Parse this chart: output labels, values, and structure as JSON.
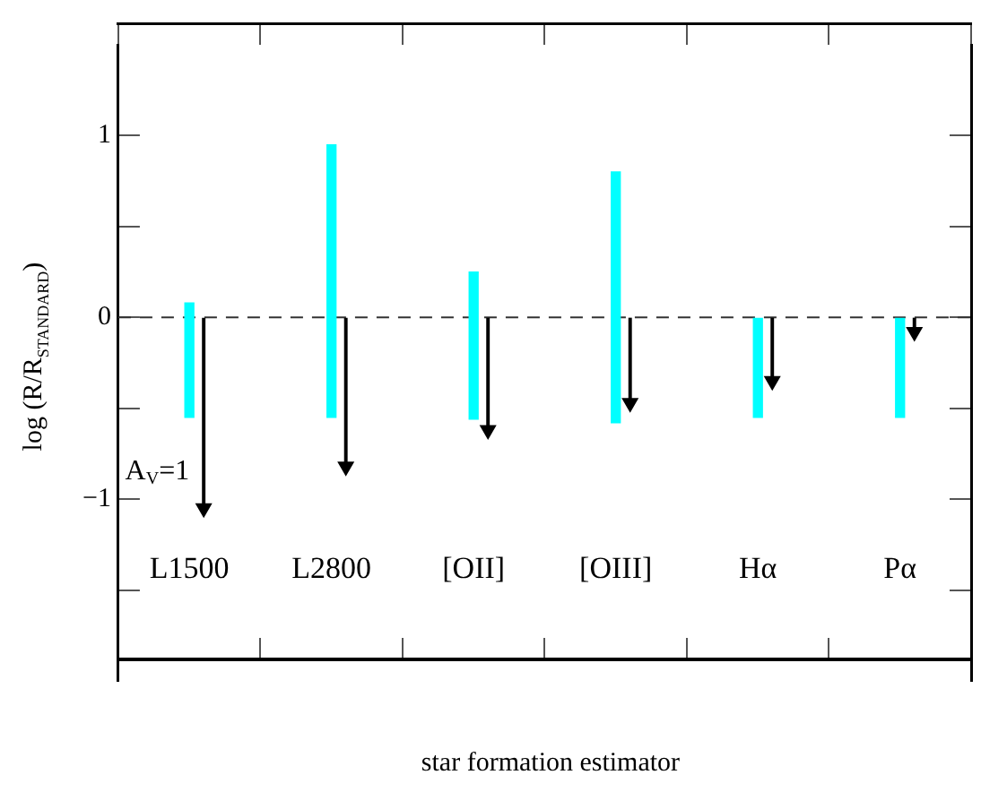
{
  "chart_data": {
    "type": "bar",
    "xlabel": "star formation estimator",
    "ylabel": "log (R/R$_{STANDARD}$)",
    "categories": [
      "L1500",
      "L2800",
      "[OII]",
      "[OIII]",
      "Hα",
      "Pα"
    ],
    "series": [
      {
        "color": "#00ffff",
        "base": [
          -0.55,
          -0.55,
          -0.56,
          -0.58,
          -0.55,
          -0.55
        ],
        "values": [
          0.63,
          1.5,
          0.81,
          1.38,
          0.55,
          0.55
        ]
      },
      {
        "name": "A$_{V}$=1",
        "type": "lollipop",
        "color": "#000000",
        "marker": "triangle",
        "values": [
          -1.05,
          -0.82,
          -0.62,
          -0.47,
          -0.35,
          -0.08
        ]
      }
    ],
    "ylim": [
      -2,
      1.5
    ],
    "yticks": [
      {
        "value": -1.5,
        "label": null
      },
      {
        "value": -1,
        "label": "−1"
      },
      {
        "value": -0.5,
        "label": null
      },
      0,
      {
        "value": 0.5,
        "label": null
      },
      1
    ],
    "ref_lines": [
      {
        "axis": "y",
        "value": 0,
        "line_style": "dashed",
        "color": "#333333"
      }
    ],
    "legend": false,
    "grid": false
  }
}
